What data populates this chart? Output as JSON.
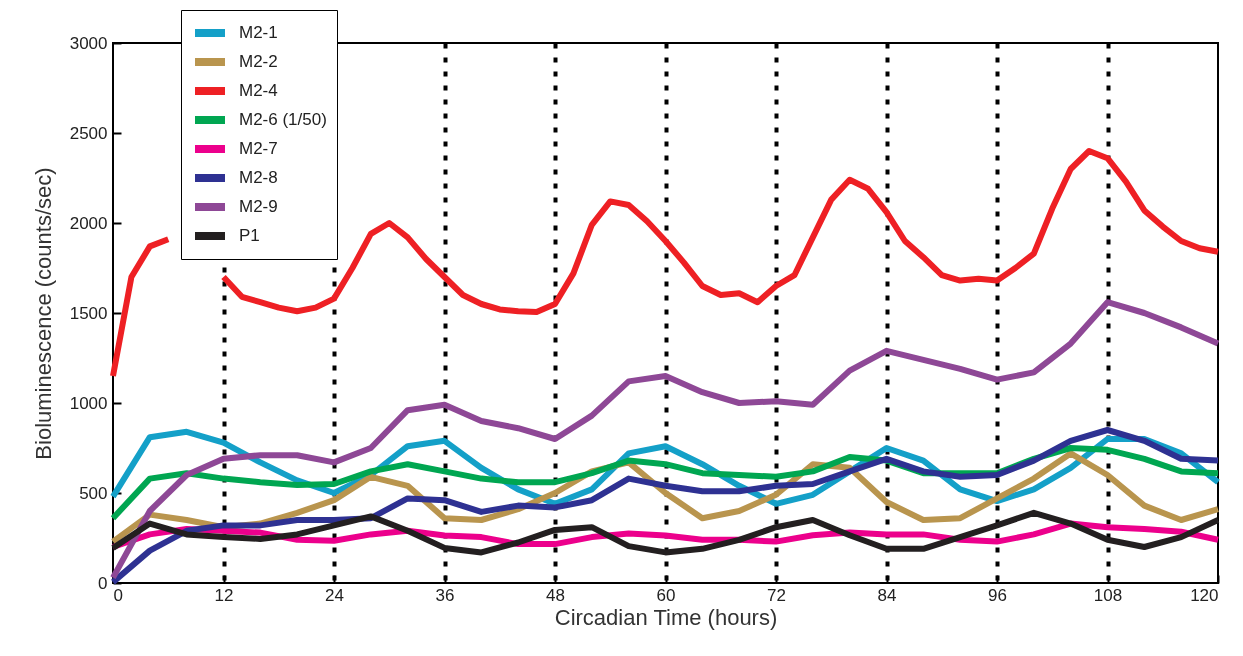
{
  "chart_data": {
    "type": "line",
    "xlabel": "Circadian Time (hours)",
    "ylabel": "Bioluminescence (counts/sec)",
    "x": [
      0,
      4,
      8,
      12,
      16,
      20,
      24,
      28,
      32,
      36,
      40,
      44,
      48,
      52,
      56,
      60,
      64,
      68,
      72,
      76,
      80,
      84,
      88,
      92,
      96,
      100,
      104,
      108,
      112,
      116,
      120
    ],
    "xlim": [
      0,
      120
    ],
    "xticks": [
      0,
      12,
      24,
      36,
      48,
      60,
      72,
      84,
      96,
      108,
      120
    ],
    "ylim": [
      0,
      3000
    ],
    "yticks": [
      0,
      500,
      1000,
      1500,
      2000,
      2500,
      3000
    ],
    "grid": "x",
    "legend": "top left",
    "marker": "none",
    "line_style": "solid",
    "series": [
      {
        "name": "M2-1",
        "color": "#14a0c8",
        "values": [
          480,
          810,
          840,
          780,
          670,
          570,
          500,
          600,
          760,
          790,
          640,
          520,
          440,
          520,
          720,
          760,
          660,
          540,
          440,
          490,
          620,
          750,
          680,
          520,
          455,
          520,
          640,
          800,
          800,
          720,
          560
        ]
      },
      {
        "name": "M2-2",
        "color": "#b9954e",
        "values": [
          230,
          380,
          350,
          310,
          330,
          390,
          460,
          590,
          540,
          360,
          350,
          410,
          500,
          620,
          670,
          500,
          360,
          400,
          490,
          660,
          640,
          450,
          350,
          360,
          470,
          580,
          720,
          600,
          430,
          350,
          410
        ]
      },
      {
        "name": "M2-4",
        "color": "#ee2024",
        "x": [
          0,
          2,
          4,
          6,
          8,
          10,
          12,
          14,
          16,
          18,
          20,
          22,
          24,
          26,
          28,
          30,
          32,
          34,
          36,
          38,
          40,
          42,
          44,
          46,
          48,
          50,
          52,
          54,
          56,
          58,
          60,
          62,
          64,
          66,
          68,
          70,
          72,
          74,
          76,
          78,
          80,
          82,
          84,
          86,
          88,
          90,
          92,
          94,
          96,
          98,
          100,
          102,
          104,
          106,
          108,
          110,
          112,
          114,
          116,
          118,
          120
        ],
        "values": [
          1150,
          1700,
          1870,
          1910,
          null,
          null,
          1700,
          1590,
          1560,
          1530,
          1510,
          1530,
          1580,
          1750,
          1940,
          2000,
          1920,
          1800,
          1700,
          1600,
          1550,
          1520,
          1510,
          1505,
          1550,
          1720,
          1990,
          2120,
          2100,
          2010,
          1900,
          1780,
          1650,
          1600,
          1610,
          1560,
          1650,
          1710,
          1920,
          2130,
          2240,
          2190,
          2060,
          1900,
          1810,
          1710,
          1680,
          1690,
          1680,
          1750,
          1830,
          2080,
          2300,
          2400,
          2360,
          2230,
          2070,
          1980,
          1900,
          1860,
          1840
        ]
      },
      {
        "name": "M2-6 (1/50)",
        "color": "#00a651",
        "values": [
          360,
          580,
          610,
          580,
          560,
          545,
          550,
          620,
          660,
          620,
          580,
          560,
          560,
          610,
          680,
          660,
          610,
          600,
          590,
          620,
          700,
          680,
          610,
          610,
          610,
          690,
          750,
          740,
          690,
          620,
          610
        ]
      },
      {
        "name": "M2-7",
        "color": "#ec008c",
        "values": [
          200,
          270,
          300,
          290,
          280,
          240,
          235,
          270,
          290,
          264,
          255,
          216,
          216,
          255,
          275,
          264,
          240,
          240,
          230,
          265,
          280,
          270,
          270,
          240,
          230,
          270,
          330,
          310,
          300,
          285,
          240
        ]
      },
      {
        "name": "M2-8",
        "color": "#2e3192",
        "values": [
          5,
          180,
          290,
          320,
          320,
          350,
          350,
          360,
          470,
          460,
          395,
          430,
          420,
          460,
          580,
          540,
          510,
          510,
          540,
          550,
          620,
          690,
          620,
          590,
          600,
          680,
          790,
          850,
          790,
          690,
          680
        ]
      },
      {
        "name": "M2-9",
        "color": "#8e4896",
        "values": [
          30,
          400,
          600,
          690,
          710,
          710,
          670,
          750,
          960,
          990,
          900,
          860,
          800,
          930,
          1120,
          1150,
          1060,
          1000,
          1010,
          990,
          1180,
          1290,
          1240,
          1190,
          1130,
          1170,
          1330,
          1560,
          1500,
          1420,
          1330
        ]
      },
      {
        "name": "P1",
        "color": "#231f20",
        "values": [
          195,
          330,
          270,
          255,
          245,
          270,
          320,
          370,
          290,
          195,
          170,
          225,
          295,
          310,
          205,
          170,
          190,
          240,
          310,
          350,
          265,
          190,
          190,
          255,
          320,
          390,
          330,
          240,
          200,
          255,
          350
        ]
      }
    ]
  }
}
